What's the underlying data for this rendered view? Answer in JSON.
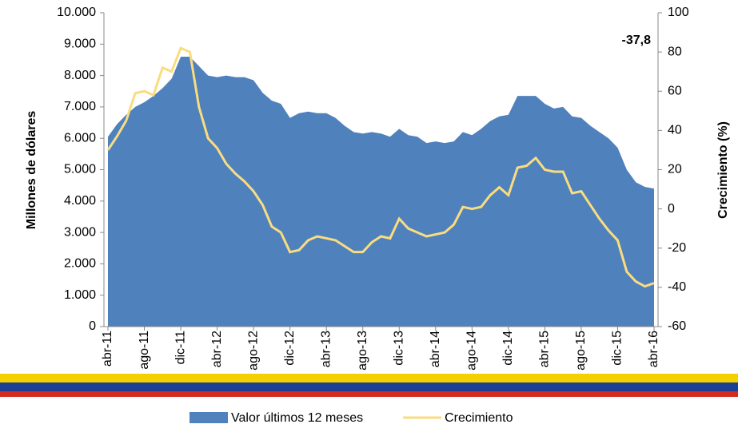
{
  "chart_data": {
    "type": "area-line",
    "y_label": "Millones de dólares",
    "y2_label": "Crecimiento  (%)",
    "categories": [
      "abr-11",
      null,
      null,
      null,
      "ago-11",
      null,
      null,
      null,
      "dic-11",
      null,
      null,
      null,
      "abr-12",
      null,
      null,
      null,
      "ago-12",
      null,
      null,
      null,
      "dic-12",
      null,
      null,
      null,
      "abr-13",
      null,
      null,
      null,
      "ago-13",
      null,
      null,
      null,
      "dic-13",
      null,
      null,
      null,
      "abr-14",
      null,
      null,
      null,
      "ago-14",
      null,
      null,
      null,
      "dic-14",
      null,
      null,
      null,
      "abr-15",
      null,
      null,
      null,
      "ago-15",
      null,
      null,
      null,
      "dic-15",
      null,
      null,
      null,
      "abr-16"
    ],
    "series": [
      {
        "name": "Valor últimos 12 meses",
        "color": "#4f81bd",
        "kind": "area",
        "axis": "y",
        "values": [
          6050,
          6450,
          6750,
          7000,
          7150,
          7350,
          7600,
          7900,
          8600,
          8600,
          8300,
          8000,
          7950,
          8000,
          7950,
          7950,
          7850,
          7450,
          7200,
          7100,
          6650,
          6800,
          6850,
          6800,
          6800,
          6650,
          6400,
          6200,
          6150,
          6200,
          6150,
          6050,
          6300,
          6100,
          6050,
          5850,
          5900,
          5850,
          5900,
          6200,
          6100,
          6300,
          6550,
          6700,
          6750,
          7350,
          7350,
          7350,
          7100,
          6950,
          7000,
          6700,
          6650,
          6400,
          6200,
          6000,
          5700,
          5000,
          4600,
          4450,
          4400
        ]
      },
      {
        "name": "Crecimiento",
        "color": "#fadc80",
        "kind": "line",
        "axis": "y2",
        "values": [
          30,
          37,
          45,
          59,
          60,
          58,
          72,
          70,
          82,
          80,
          52,
          36,
          31,
          23,
          18,
          14,
          9,
          2,
          -9,
          -12,
          -22,
          -21,
          -16,
          -14,
          -15,
          -16,
          -19,
          -22,
          -22,
          -17,
          -14,
          -15,
          -5,
          -10,
          -12,
          -14,
          -13,
          -12,
          -8,
          1,
          0,
          1,
          7,
          11,
          7,
          21,
          22,
          26,
          20,
          19,
          19,
          8,
          9,
          2,
          -5,
          -11,
          -16,
          -32,
          -37,
          -39.5,
          -37.8
        ],
        "value_labels": [
          null,
          null,
          null,
          null,
          null,
          null,
          null,
          null,
          null,
          null,
          null,
          null,
          null,
          null,
          null,
          null,
          null,
          null,
          null,
          null,
          null,
          null,
          null,
          null,
          null,
          null,
          null,
          null,
          null,
          null,
          null,
          null,
          null,
          null,
          null,
          null,
          null,
          null,
          null,
          null,
          null,
          null,
          null,
          null,
          null,
          null,
          null,
          null,
          null,
          null,
          null,
          null,
          null,
          null,
          null,
          null,
          null,
          null,
          null,
          null,
          "-37,8"
        ]
      }
    ],
    "ylim": [
      0,
      10000
    ],
    "yticks": [
      0,
      {
        "value": 1000,
        "label": "1.000"
      },
      {
        "value": 2000,
        "label": "2.000"
      },
      {
        "value": 3000,
        "label": "3.000"
      },
      {
        "value": 4000,
        "label": "4.000"
      },
      {
        "value": 5000,
        "label": "5.000"
      },
      {
        "value": 6000,
        "label": "6.000"
      },
      {
        "value": 7000,
        "label": "7.000"
      },
      {
        "value": 8000,
        "label": "8.000"
      },
      {
        "value": 9000,
        "label": "9.000"
      },
      {
        "value": 10000,
        "label": "10.000"
      }
    ],
    "y2lim": [
      -60,
      100
    ],
    "y2ticks": [
      -60,
      -40,
      -20,
      0,
      20,
      40,
      60,
      80,
      100
    ]
  }
}
